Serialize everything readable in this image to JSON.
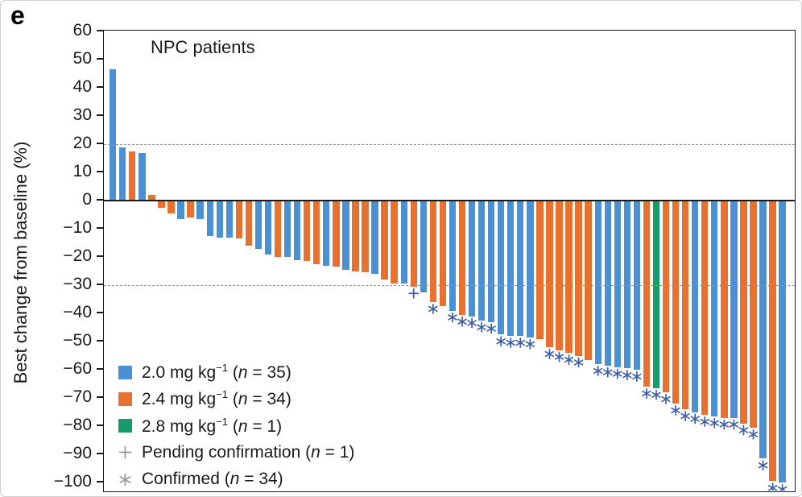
{
  "panel_label": "e",
  "title": "NPC patients",
  "y_axis": {
    "label": "Best change from baseline (%)",
    "tick_values": [
      60,
      50,
      40,
      30,
      20,
      10,
      0,
      -10,
      -20,
      -30,
      -40,
      -50,
      -60,
      -70,
      -80,
      -90,
      -100
    ],
    "tick_labels": [
      "60",
      "50",
      "40",
      "30",
      "20",
      "10",
      "0",
      "−10",
      "−20",
      "−30",
      "−40",
      "−50",
      "−60",
      "−70",
      "−80",
      "−90",
      "−100"
    ]
  },
  "colors": {
    "dose_2_0": "#4A90D2",
    "dose_2_4": "#E8712F",
    "dose_2_8": "#169C6B",
    "marker_on_chart": "#3D5FA8",
    "legend_glyph_gray": "#9A9A9A",
    "refline_gray": "#929292",
    "axis_black": "#1a1a1a"
  },
  "legend": {
    "items": [
      {
        "type": "swatch",
        "color_key": "dose_2_0",
        "pre": "2.0 mg kg",
        "sup": "−1",
        "mid": " (",
        "n": "n",
        "post": " = 35)"
      },
      {
        "type": "swatch",
        "color_key": "dose_2_4",
        "pre": "2.4 mg kg",
        "sup": "−1",
        "mid": " (",
        "n": "n",
        "post": " = 34)"
      },
      {
        "type": "swatch",
        "color_key": "dose_2_8",
        "pre": "2.8 mg kg",
        "sup": "−1",
        "mid": " (",
        "n": "n",
        "post": " = 1)"
      },
      {
        "type": "plus",
        "color_key": "legend_glyph_gray",
        "pre": "Pending confirmation",
        "sup": "",
        "mid": " (",
        "n": "n",
        "post": " = 1)"
      },
      {
        "type": "asterisk",
        "color_key": "legend_glyph_gray",
        "pre": "Confirmed",
        "sup": "",
        "mid": " (",
        "n": "n",
        "post": " = 34)"
      }
    ]
  },
  "reference_lines": [
    20,
    -30
  ],
  "chart_data": {
    "type": "bar",
    "subtype": "waterfall",
    "title": "NPC patients",
    "xlabel": "",
    "ylabel": "Best change from baseline (%)",
    "ylim": [
      -103.5,
      60.5
    ],
    "grid": "dashed reference lines at +20 and -30",
    "legend_position": "inside bottom-left",
    "dose_color_map": {
      "2.0": "dose_2_0",
      "2.4": "dose_2_4",
      "2.8": "dose_2_8"
    },
    "bars": [
      {
        "value": 46.5,
        "dose": "2.0",
        "marker": null
      },
      {
        "value": 19,
        "dose": "2.0",
        "marker": null
      },
      {
        "value": 17.5,
        "dose": "2.4",
        "marker": null
      },
      {
        "value": 17,
        "dose": "2.0",
        "marker": null
      },
      {
        "value": 2,
        "dose": "2.4",
        "marker": null
      },
      {
        "value": -2.5,
        "dose": "2.4",
        "marker": null
      },
      {
        "value": -4.5,
        "dose": "2.4",
        "marker": null
      },
      {
        "value": -6.5,
        "dose": "2.0",
        "marker": null
      },
      {
        "value": -6,
        "dose": "2.4",
        "marker": null
      },
      {
        "value": -6.5,
        "dose": "2.0",
        "marker": null
      },
      {
        "value": -12.5,
        "dose": "2.0",
        "marker": null
      },
      {
        "value": -13,
        "dose": "2.0",
        "marker": null
      },
      {
        "value": -13,
        "dose": "2.0",
        "marker": null
      },
      {
        "value": -13.5,
        "dose": "2.4",
        "marker": null
      },
      {
        "value": -16,
        "dose": "2.4",
        "marker": null
      },
      {
        "value": -17,
        "dose": "2.0",
        "marker": null
      },
      {
        "value": -19,
        "dose": "2.0",
        "marker": null
      },
      {
        "value": -20,
        "dose": "2.4",
        "marker": null
      },
      {
        "value": -20,
        "dose": "2.0",
        "marker": null
      },
      {
        "value": -21,
        "dose": "2.0",
        "marker": null
      },
      {
        "value": -21.5,
        "dose": "2.4",
        "marker": null
      },
      {
        "value": -22.5,
        "dose": "2.4",
        "marker": null
      },
      {
        "value": -23,
        "dose": "2.0",
        "marker": null
      },
      {
        "value": -23.5,
        "dose": "2.4",
        "marker": null
      },
      {
        "value": -24.5,
        "dose": "2.0",
        "marker": null
      },
      {
        "value": -25,
        "dose": "2.4",
        "marker": null
      },
      {
        "value": -25.5,
        "dose": "2.4",
        "marker": null
      },
      {
        "value": -26,
        "dose": "2.0",
        "marker": null
      },
      {
        "value": -28,
        "dose": "2.4",
        "marker": null
      },
      {
        "value": -29.5,
        "dose": "2.4",
        "marker": null
      },
      {
        "value": -29.5,
        "dose": "2.0",
        "marker": null
      },
      {
        "value": -30.5,
        "dose": "2.4",
        "marker": "pending"
      },
      {
        "value": -32.5,
        "dose": "2.0",
        "marker": null
      },
      {
        "value": -36,
        "dose": "2.4",
        "marker": "confirmed"
      },
      {
        "value": -37.5,
        "dose": "2.4",
        "marker": null
      },
      {
        "value": -39,
        "dose": "2.0",
        "marker": "confirmed"
      },
      {
        "value": -40.5,
        "dose": "2.4",
        "marker": "confirmed"
      },
      {
        "value": -41,
        "dose": "2.0",
        "marker": "confirmed"
      },
      {
        "value": -42.5,
        "dose": "2.0",
        "marker": "confirmed"
      },
      {
        "value": -43,
        "dose": "2.0",
        "marker": "confirmed"
      },
      {
        "value": -47.5,
        "dose": "2.0",
        "marker": "confirmed"
      },
      {
        "value": -48,
        "dose": "2.0",
        "marker": "confirmed"
      },
      {
        "value": -48,
        "dose": "2.0",
        "marker": "confirmed"
      },
      {
        "value": -48.5,
        "dose": "2.0",
        "marker": "confirmed"
      },
      {
        "value": -49,
        "dose": "2.4",
        "marker": null
      },
      {
        "value": -52,
        "dose": "2.4",
        "marker": "confirmed"
      },
      {
        "value": -53,
        "dose": "2.4",
        "marker": "confirmed"
      },
      {
        "value": -54,
        "dose": "2.4",
        "marker": "confirmed"
      },
      {
        "value": -55,
        "dose": "2.4",
        "marker": "confirmed"
      },
      {
        "value": -56.5,
        "dose": "2.4",
        "marker": null
      },
      {
        "value": -58,
        "dose": "2.0",
        "marker": "confirmed"
      },
      {
        "value": -58.5,
        "dose": "2.0",
        "marker": "confirmed"
      },
      {
        "value": -59,
        "dose": "2.0",
        "marker": "confirmed"
      },
      {
        "value": -59.5,
        "dose": "2.0",
        "marker": "confirmed"
      },
      {
        "value": -60,
        "dose": "2.0",
        "marker": "confirmed"
      },
      {
        "value": -66,
        "dose": "2.4",
        "marker": "confirmed"
      },
      {
        "value": -66.5,
        "dose": "2.8",
        "marker": "confirmed"
      },
      {
        "value": -68,
        "dose": "2.4",
        "marker": "confirmed"
      },
      {
        "value": -72,
        "dose": "2.4",
        "marker": "confirmed"
      },
      {
        "value": -74,
        "dose": "2.4",
        "marker": "confirmed"
      },
      {
        "value": -75,
        "dose": "2.0",
        "marker": "confirmed"
      },
      {
        "value": -76,
        "dose": "2.4",
        "marker": "confirmed"
      },
      {
        "value": -76.5,
        "dose": "2.0",
        "marker": "confirmed"
      },
      {
        "value": -77,
        "dose": "2.4",
        "marker": "confirmed"
      },
      {
        "value": -77,
        "dose": "2.0",
        "marker": "confirmed"
      },
      {
        "value": -79,
        "dose": "2.4",
        "marker": "confirmed"
      },
      {
        "value": -80.5,
        "dose": "2.4",
        "marker": "confirmed"
      },
      {
        "value": -91.5,
        "dose": "2.0",
        "marker": "confirmed"
      },
      {
        "value": -99.5,
        "dose": "2.4",
        "marker": "confirmed"
      },
      {
        "value": -100,
        "dose": "2.0",
        "marker": "confirmed"
      }
    ]
  }
}
